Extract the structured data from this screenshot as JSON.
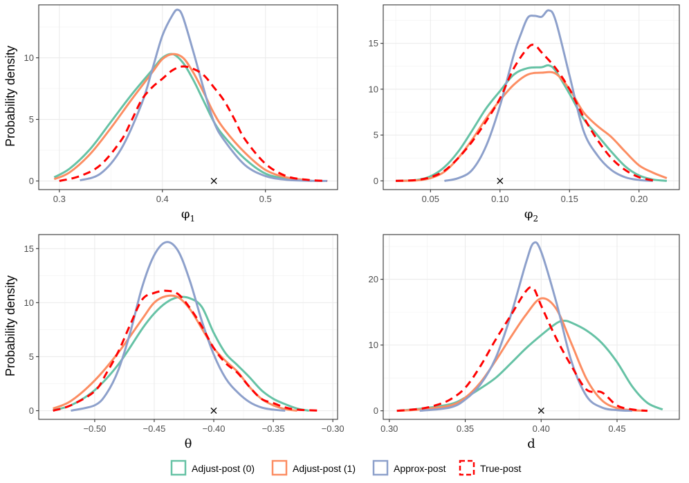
{
  "figure": {
    "ylabel": "Probability density",
    "colors": {
      "Adjust-post (0)": "#66c2a5",
      "Adjust-post (1)": "#fc8d62",
      "Approx-post": "#8da0cb",
      "True-post": "#ff0000"
    },
    "legend": [
      {
        "label": "Adjust-post (0)",
        "dashed": false
      },
      {
        "label": "Adjust-post (1)",
        "dashed": false
      },
      {
        "label": "Approx-post",
        "dashed": false
      },
      {
        "label": "True-post",
        "dashed": true
      }
    ]
  },
  "chart_data": [
    {
      "type": "line",
      "panel": "phi1",
      "xlabel": "φ",
      "xlabel_sub": "1",
      "xlim": [
        0.28,
        0.57
      ],
      "ylim": [
        -0.7,
        14.3
      ],
      "xticks": [
        0.3,
        0.4,
        0.5
      ],
      "xtick_labels": [
        "0.3",
        "0.4",
        "0.5"
      ],
      "yticks": [
        0,
        5,
        10
      ],
      "ytick_labels": [
        "0",
        "5",
        "10"
      ],
      "true_value": 0.45,
      "true_marker": "×",
      "series": [
        {
          "name": "Adjust-post (0)",
          "x": [
            0.295,
            0.31,
            0.33,
            0.35,
            0.37,
            0.39,
            0.4,
            0.41,
            0.42,
            0.43,
            0.44,
            0.45,
            0.46,
            0.48,
            0.5,
            0.52,
            0.54,
            0.545
          ],
          "y": [
            0.3,
            1.0,
            2.6,
            4.8,
            7.0,
            9.0,
            10.0,
            10.3,
            9.6,
            8.2,
            6.5,
            4.8,
            3.6,
            1.8,
            0.6,
            0.2,
            0.05,
            0.0
          ]
        },
        {
          "name": "Adjust-post (1)",
          "x": [
            0.295,
            0.31,
            0.33,
            0.35,
            0.37,
            0.39,
            0.4,
            0.41,
            0.42,
            0.43,
            0.44,
            0.45,
            0.46,
            0.48,
            0.5,
            0.52,
            0.54,
            0.545
          ],
          "y": [
            0.15,
            0.7,
            2.2,
            4.3,
            6.6,
            8.8,
            9.9,
            10.3,
            10.0,
            8.8,
            7.2,
            5.5,
            4.2,
            2.3,
            0.9,
            0.3,
            0.08,
            0.0
          ]
        },
        {
          "name": "Approx-post",
          "x": [
            0.32,
            0.34,
            0.36,
            0.38,
            0.39,
            0.4,
            0.41,
            0.415,
            0.42,
            0.43,
            0.44,
            0.45,
            0.46,
            0.48,
            0.5,
            0.52,
            0.54,
            0.56
          ],
          "y": [
            0.05,
            0.6,
            2.6,
            6.3,
            9.0,
            11.8,
            13.5,
            13.9,
            13.3,
            10.5,
            7.5,
            4.8,
            3.3,
            1.3,
            0.4,
            0.1,
            0.02,
            0.0
          ]
        },
        {
          "name": "True-post",
          "x": [
            0.3,
            0.32,
            0.34,
            0.36,
            0.37,
            0.38,
            0.39,
            0.4,
            0.41,
            0.42,
            0.43,
            0.44,
            0.45,
            0.46,
            0.47,
            0.48,
            0.5,
            0.52,
            0.54,
            0.56
          ],
          "y": [
            0.0,
            0.4,
            1.3,
            3.3,
            4.9,
            6.6,
            7.6,
            8.3,
            9.0,
            9.3,
            9.1,
            8.6,
            7.6,
            6.5,
            5.0,
            3.4,
            1.4,
            0.4,
            0.1,
            0.0
          ]
        }
      ]
    },
    {
      "type": "line",
      "panel": "phi2",
      "xlabel": "φ",
      "xlabel_sub": "2",
      "xlim": [
        0.016,
        0.229
      ],
      "ylim": [
        -0.95,
        19.2
      ],
      "xticks": [
        0.05,
        0.1,
        0.15,
        0.2
      ],
      "xtick_labels": [
        "0.05",
        "0.10",
        "0.15",
        "0.20"
      ],
      "yticks": [
        0,
        5,
        10,
        15
      ],
      "ytick_labels": [
        "0",
        "5",
        "10",
        "15"
      ],
      "true_value": 0.1,
      "true_marker": "×",
      "series": [
        {
          "name": "Adjust-post (0)",
          "x": [
            0.025,
            0.04,
            0.05,
            0.06,
            0.07,
            0.08,
            0.09,
            0.1,
            0.11,
            0.12,
            0.13,
            0.135,
            0.14,
            0.15,
            0.16,
            0.17,
            0.18,
            0.19,
            0.2,
            0.21,
            0.22
          ],
          "y": [
            0.0,
            0.1,
            0.5,
            1.5,
            3.2,
            5.5,
            7.9,
            9.8,
            11.6,
            12.3,
            12.4,
            12.6,
            12.0,
            9.5,
            6.8,
            5.0,
            3.2,
            1.6,
            0.6,
            0.15,
            0.0
          ]
        },
        {
          "name": "Adjust-post (1)",
          "x": [
            0.025,
            0.04,
            0.05,
            0.06,
            0.07,
            0.08,
            0.09,
            0.1,
            0.11,
            0.12,
            0.13,
            0.14,
            0.15,
            0.16,
            0.17,
            0.18,
            0.19,
            0.2,
            0.21,
            0.22
          ],
          "y": [
            0.0,
            0.05,
            0.3,
            1.0,
            2.5,
            4.5,
            6.8,
            8.8,
            10.5,
            11.6,
            11.8,
            11.7,
            10.0,
            7.5,
            6.0,
            4.8,
            3.2,
            1.7,
            0.9,
            0.3
          ]
        },
        {
          "name": "Approx-post",
          "x": [
            0.06,
            0.07,
            0.08,
            0.09,
            0.1,
            0.11,
            0.115,
            0.12,
            0.125,
            0.13,
            0.135,
            0.14,
            0.15,
            0.16,
            0.17,
            0.18,
            0.19,
            0.2,
            0.21
          ],
          "y": [
            0.0,
            0.3,
            1.2,
            3.8,
            8.2,
            13.8,
            16.0,
            17.8,
            18.0,
            17.9,
            18.6,
            17.5,
            11.5,
            5.5,
            2.8,
            1.2,
            0.4,
            0.1,
            0.0
          ]
        },
        {
          "name": "True-post",
          "x": [
            0.025,
            0.04,
            0.05,
            0.06,
            0.07,
            0.08,
            0.09,
            0.1,
            0.11,
            0.12,
            0.125,
            0.13,
            0.14,
            0.15,
            0.16,
            0.17,
            0.18,
            0.19,
            0.2,
            0.21
          ],
          "y": [
            0.0,
            0.1,
            0.4,
            1.1,
            2.5,
            4.3,
            6.5,
            9.0,
            12.3,
            14.5,
            14.8,
            14.0,
            12.3,
            10.0,
            7.0,
            4.5,
            2.5,
            1.2,
            0.4,
            0.05
          ]
        }
      ]
    },
    {
      "type": "line",
      "panel": "theta",
      "xlabel": "θ",
      "xlabel_sub": "",
      "xlim": [
        -0.547,
        -0.296
      ],
      "ylim": [
        -0.8,
        16.3
      ],
      "xticks": [
        -0.5,
        -0.45,
        -0.4,
        -0.35,
        -0.3
      ],
      "xtick_labels": [
        "−0.50",
        "−0.45",
        "−0.40",
        "−0.35",
        "−0.30"
      ],
      "yticks": [
        0,
        5,
        10,
        15
      ],
      "ytick_labels": [
        "0",
        "5",
        "10",
        "15"
      ],
      "true_value": -0.4,
      "true_marker": "×",
      "series": [
        {
          "name": "Adjust-post (0)",
          "x": [
            -0.535,
            -0.52,
            -0.5,
            -0.48,
            -0.46,
            -0.45,
            -0.44,
            -0.43,
            -0.42,
            -0.41,
            -0.4,
            -0.39,
            -0.38,
            -0.37,
            -0.36,
            -0.35,
            -0.34,
            -0.33,
            -0.32
          ],
          "y": [
            0.05,
            0.5,
            1.9,
            4.3,
            7.6,
            9.0,
            10.0,
            10.5,
            10.4,
            9.6,
            7.2,
            5.3,
            4.2,
            3.1,
            1.9,
            1.1,
            0.6,
            0.2,
            0.0
          ]
        },
        {
          "name": "Adjust-post (1)",
          "x": [
            -0.535,
            -0.52,
            -0.5,
            -0.48,
            -0.46,
            -0.45,
            -0.44,
            -0.43,
            -0.42,
            -0.41,
            -0.4,
            -0.39,
            -0.38,
            -0.37,
            -0.36,
            -0.35,
            -0.34,
            -0.33
          ],
          "y": [
            0.2,
            0.9,
            2.8,
            5.4,
            8.5,
            10.0,
            10.6,
            10.5,
            9.4,
            7.6,
            5.8,
            4.6,
            3.6,
            2.2,
            1.1,
            0.5,
            0.15,
            0.0
          ]
        },
        {
          "name": "Approx-post",
          "x": [
            -0.52,
            -0.5,
            -0.49,
            -0.48,
            -0.47,
            -0.46,
            -0.45,
            -0.44,
            -0.43,
            -0.42,
            -0.41,
            -0.4,
            -0.39,
            -0.38,
            -0.37,
            -0.36,
            -0.35,
            -0.34
          ],
          "y": [
            0.0,
            0.5,
            1.6,
            3.8,
            7.3,
            11.5,
            14.4,
            15.6,
            14.8,
            12.0,
            8.3,
            5.2,
            3.0,
            1.7,
            0.8,
            0.3,
            0.1,
            0.0
          ]
        },
        {
          "name": "True-post",
          "x": [
            -0.535,
            -0.52,
            -0.5,
            -0.49,
            -0.48,
            -0.47,
            -0.46,
            -0.45,
            -0.44,
            -0.43,
            -0.42,
            -0.41,
            -0.4,
            -0.39,
            -0.38,
            -0.37,
            -0.36,
            -0.35,
            -0.34,
            -0.33,
            -0.31
          ],
          "y": [
            0.0,
            0.5,
            1.8,
            3.5,
            5.5,
            8.0,
            10.3,
            10.9,
            11.1,
            10.8,
            9.5,
            7.8,
            5.8,
            4.4,
            3.5,
            2.2,
            1.1,
            0.7,
            0.3,
            0.1,
            0.0
          ]
        }
      ]
    },
    {
      "type": "line",
      "panel": "d",
      "xlabel": "d",
      "xlabel_sub": "",
      "xlim": [
        0.296,
        0.491
      ],
      "ylim": [
        -1.3,
        26.8
      ],
      "xticks": [
        0.3,
        0.35,
        0.4,
        0.45
      ],
      "xtick_labels": [
        "0.30",
        "0.35",
        "0.40",
        "0.45"
      ],
      "yticks": [
        0,
        10,
        20
      ],
      "ytick_labels": [
        "0",
        "10",
        "20"
      ],
      "true_value": 0.4,
      "true_marker": "×",
      "series": [
        {
          "name": "Adjust-post (0)",
          "x": [
            0.305,
            0.32,
            0.34,
            0.35,
            0.36,
            0.37,
            0.38,
            0.39,
            0.4,
            0.41,
            0.415,
            0.42,
            0.43,
            0.44,
            0.45,
            0.46,
            0.47,
            0.48
          ],
          "y": [
            0.0,
            0.3,
            1.0,
            2.0,
            3.4,
            5.0,
            7.2,
            9.5,
            11.5,
            13.3,
            13.7,
            13.4,
            12.2,
            10.3,
            7.4,
            3.7,
            1.2,
            0.2
          ]
        },
        {
          "name": "Adjust-post (1)",
          "x": [
            0.305,
            0.32,
            0.34,
            0.35,
            0.36,
            0.37,
            0.38,
            0.39,
            0.4,
            0.41,
            0.42,
            0.43,
            0.44,
            0.45,
            0.46,
            0.47
          ],
          "y": [
            0.0,
            0.2,
            0.8,
            2.0,
            4.3,
            7.6,
            11.2,
            14.6,
            17.1,
            15.5,
            10.2,
            4.8,
            1.6,
            0.4,
            0.1,
            0.0
          ]
        },
        {
          "name": "Approx-post",
          "x": [
            0.32,
            0.34,
            0.35,
            0.36,
            0.37,
            0.38,
            0.39,
            0.395,
            0.4,
            0.41,
            0.42,
            0.43,
            0.44,
            0.45,
            0.46
          ],
          "y": [
            0.0,
            0.5,
            1.7,
            4.0,
            8.0,
            14.5,
            22.5,
            25.5,
            24.2,
            16.5,
            7.5,
            2.2,
            0.5,
            0.1,
            0.0
          ]
        },
        {
          "name": "True-post",
          "x": [
            0.305,
            0.32,
            0.33,
            0.34,
            0.35,
            0.36,
            0.37,
            0.38,
            0.39,
            0.395,
            0.4,
            0.41,
            0.42,
            0.43,
            0.44,
            0.45,
            0.46,
            0.47
          ],
          "y": [
            0.0,
            0.3,
            0.8,
            1.7,
            3.5,
            6.8,
            10.8,
            14.5,
            18.2,
            18.6,
            16.0,
            11.0,
            6.8,
            3.2,
            2.8,
            0.8,
            0.2,
            0.0
          ]
        }
      ]
    }
  ]
}
